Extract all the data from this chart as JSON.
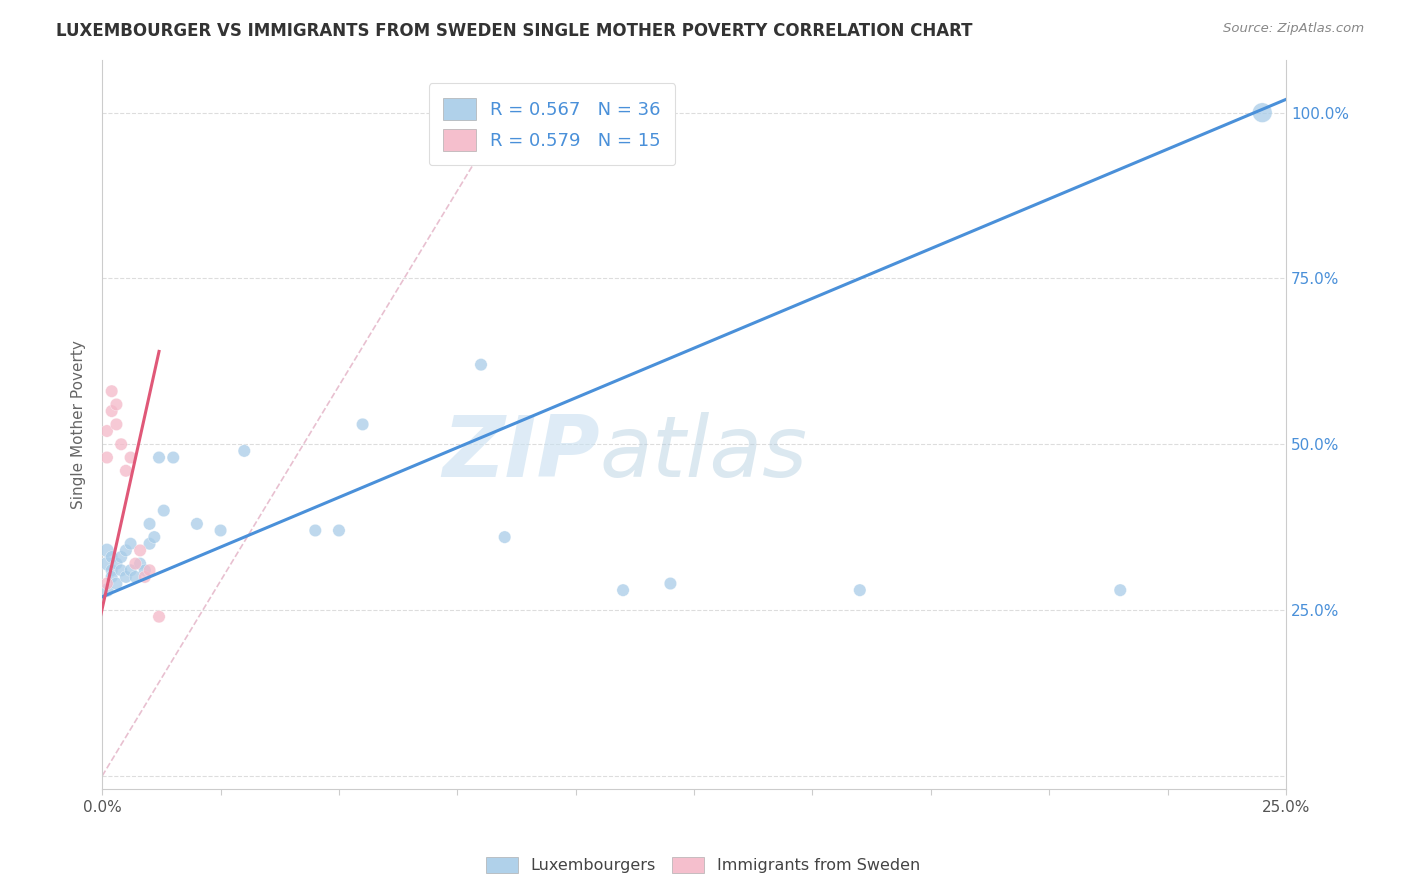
{
  "title": "LUXEMBOURGER VS IMMIGRANTS FROM SWEDEN SINGLE MOTHER POVERTY CORRELATION CHART",
  "source": "Source: ZipAtlas.com",
  "ylabel": "Single Mother Poverty",
  "xlim": [
    0,
    0.25
  ],
  "ylim": [
    -0.02,
    1.08
  ],
  "xticks": [
    0.0,
    0.025,
    0.05,
    0.075,
    0.1,
    0.125,
    0.15,
    0.175,
    0.2,
    0.225,
    0.25
  ],
  "yticks": [
    0.0,
    0.25,
    0.5,
    0.75,
    1.0
  ],
  "legend_entry1": "R = 0.567   N = 36",
  "legend_entry2": "R = 0.579   N = 15",
  "legend_labels_bottom": [
    "Luxembourgers",
    "Immigrants from Sweden"
  ],
  "blue_color": "#a8cce8",
  "pink_color": "#f4b8c8",
  "blue_line_color": "#4a90d9",
  "pink_line_color": "#e05878",
  "diag_line_color": "#e0b8c8",
  "watermark_zip": "ZIP",
  "watermark_atlas": "atlas",
  "blue_scatter_x": [
    0.001,
    0.001,
    0.001,
    0.002,
    0.002,
    0.002,
    0.003,
    0.003,
    0.004,
    0.004,
    0.005,
    0.005,
    0.006,
    0.006,
    0.007,
    0.008,
    0.009,
    0.01,
    0.01,
    0.011,
    0.012,
    0.013,
    0.015,
    0.02,
    0.025,
    0.03,
    0.045,
    0.05,
    0.055,
    0.08,
    0.085,
    0.11,
    0.12,
    0.16,
    0.215,
    0.245
  ],
  "blue_scatter_y": [
    0.28,
    0.32,
    0.34,
    0.31,
    0.33,
    0.3,
    0.32,
    0.29,
    0.31,
    0.33,
    0.3,
    0.34,
    0.31,
    0.35,
    0.3,
    0.32,
    0.31,
    0.35,
    0.38,
    0.36,
    0.48,
    0.4,
    0.48,
    0.38,
    0.37,
    0.49,
    0.37,
    0.37,
    0.53,
    0.62,
    0.36,
    0.28,
    0.29,
    0.28,
    0.28,
    1.0
  ],
  "blue_scatter_sizes": [
    100,
    100,
    100,
    80,
    80,
    80,
    80,
    80,
    80,
    80,
    80,
    80,
    80,
    80,
    80,
    80,
    80,
    80,
    80,
    80,
    80,
    80,
    80,
    80,
    80,
    80,
    80,
    80,
    80,
    80,
    80,
    80,
    80,
    80,
    80,
    200
  ],
  "pink_scatter_x": [
    0.001,
    0.001,
    0.001,
    0.002,
    0.002,
    0.003,
    0.003,
    0.004,
    0.005,
    0.006,
    0.007,
    0.008,
    0.009,
    0.01,
    0.012
  ],
  "pink_scatter_y": [
    0.29,
    0.48,
    0.52,
    0.55,
    0.58,
    0.53,
    0.56,
    0.5,
    0.46,
    0.48,
    0.32,
    0.34,
    0.3,
    0.31,
    0.24
  ],
  "pink_scatter_sizes": [
    80,
    80,
    80,
    80,
    80,
    80,
    80,
    80,
    80,
    80,
    80,
    80,
    80,
    80,
    80
  ],
  "blue_line_x": [
    0.0,
    0.25
  ],
  "blue_line_y": [
    0.27,
    1.02
  ],
  "pink_line_x": [
    -0.001,
    0.012
  ],
  "pink_line_y": [
    0.22,
    0.64
  ],
  "diag_line_x": [
    0.0,
    0.085
  ],
  "diag_line_y": [
    0.0,
    1.0
  ]
}
